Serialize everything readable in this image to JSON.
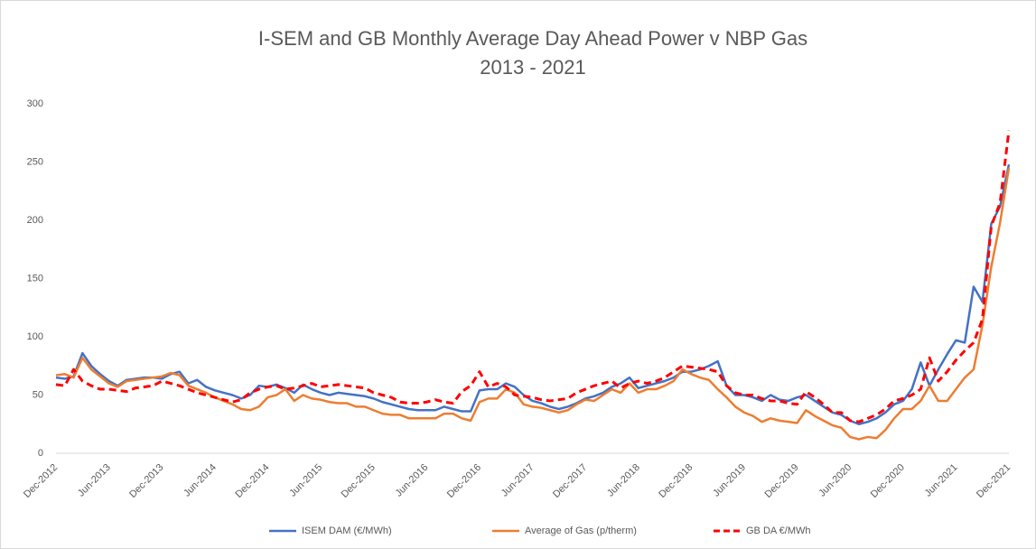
{
  "chart_data": {
    "type": "line",
    "title": "I-SEM and GB Monthly Average Day Ahead Power v NBP Gas",
    "subtitle": "2013 - 2021",
    "categories": [
      "Dec-2012",
      null,
      null,
      null,
      null,
      null,
      "Jun-2013",
      null,
      null,
      null,
      null,
      null,
      "Dec-2013",
      null,
      null,
      null,
      null,
      null,
      "Jun-2014",
      null,
      null,
      null,
      null,
      null,
      "Dec-2014",
      null,
      null,
      null,
      null,
      null,
      "Jun-2015",
      null,
      null,
      null,
      null,
      null,
      "Dec-2015",
      null,
      null,
      null,
      null,
      null,
      "Jun-2016",
      null,
      null,
      null,
      null,
      null,
      "Dec-2016",
      null,
      null,
      null,
      null,
      null,
      "Jun-2017",
      null,
      null,
      null,
      null,
      null,
      "Dec-2017",
      null,
      null,
      null,
      null,
      null,
      "Jun-2018",
      null,
      null,
      null,
      null,
      null,
      "Dec-2018",
      null,
      null,
      null,
      null,
      null,
      "Jun-2019",
      null,
      null,
      null,
      null,
      null,
      "Dec-2019",
      null,
      null,
      null,
      null,
      null,
      "Jun-2020",
      null,
      null,
      null,
      null,
      null,
      "Dec-2020",
      null,
      null,
      null,
      null,
      null,
      "Jun-2021",
      null,
      null,
      null,
      null,
      null,
      "Dec-2021"
    ],
    "series": [
      {
        "name": "ISEM DAM (€/MWh)",
        "color": "#4472c4",
        "dashed": false,
        "values": [
          65,
          64,
          66,
          86,
          75,
          68,
          62,
          58,
          63,
          64,
          65,
          65,
          64,
          68,
          70,
          60,
          63,
          57,
          54,
          52,
          50,
          47,
          50,
          58,
          57,
          59,
          56,
          52,
          59,
          55,
          52,
          50,
          52,
          51,
          50,
          49,
          47,
          44,
          42,
          40,
          38,
          37,
          37,
          37,
          40,
          38,
          36,
          36,
          54,
          55,
          55,
          60,
          57,
          50,
          45,
          43,
          40,
          38,
          40,
          43,
          47,
          49,
          52,
          57,
          60,
          65,
          56,
          58,
          60,
          62,
          65,
          70,
          70,
          72,
          75,
          79,
          58,
          50,
          50,
          48,
          45,
          50,
          46,
          45,
          48,
          50,
          45,
          40,
          35,
          33,
          28,
          25,
          27,
          30,
          35,
          42,
          45,
          55,
          78,
          58,
          72,
          85,
          97,
          95,
          143,
          130,
          197,
          212,
          248
        ]
      },
      {
        "name": "Average of Gas (p/therm)",
        "color": "#ed7d31",
        "dashed": false,
        "values": [
          67,
          68,
          65,
          82,
          72,
          66,
          60,
          57,
          62,
          63,
          64,
          65,
          66,
          69,
          67,
          58,
          55,
          52,
          48,
          45,
          42,
          38,
          37,
          40,
          48,
          50,
          55,
          45,
          50,
          47,
          46,
          44,
          43,
          43,
          40,
          40,
          37,
          34,
          33,
          33,
          30,
          30,
          30,
          30,
          34,
          34,
          30,
          28,
          44,
          47,
          47,
          55,
          52,
          42,
          40,
          39,
          37,
          35,
          37,
          42,
          46,
          45,
          50,
          55,
          52,
          60,
          52,
          55,
          55,
          58,
          62,
          72,
          68,
          65,
          63,
          55,
          48,
          40,
          35,
          32,
          27,
          30,
          28,
          27,
          26,
          37,
          32,
          28,
          24,
          22,
          14,
          12,
          14,
          13,
          20,
          30,
          38,
          38,
          45,
          58,
          45,
          45,
          55,
          65,
          72,
          110,
          160,
          198,
          245
        ]
      },
      {
        "name": "GB DA €/MWh",
        "color": "#ff0000",
        "dashed": true,
        "values": [
          59,
          58,
          72,
          62,
          58,
          55,
          55,
          54,
          53,
          56,
          57,
          58,
          62,
          60,
          58,
          55,
          52,
          50,
          48,
          46,
          44,
          46,
          52,
          55,
          57,
          58,
          55,
          56,
          58,
          60,
          57,
          58,
          59,
          58,
          57,
          56,
          52,
          50,
          48,
          44,
          43,
          43,
          44,
          46,
          44,
          43,
          53,
          58,
          70,
          57,
          60,
          57,
          50,
          49,
          48,
          46,
          45,
          46,
          47,
          52,
          55,
          58,
          60,
          62,
          56,
          60,
          62,
          60,
          62,
          65,
          70,
          75,
          74,
          73,
          72,
          70,
          58,
          52,
          50,
          50,
          47,
          45,
          45,
          43,
          42,
          53,
          48,
          42,
          35,
          35,
          28,
          27,
          30,
          33,
          38,
          45,
          47,
          50,
          55,
          82,
          62,
          70,
          80,
          88,
          95,
          115,
          195,
          215,
          277
        ]
      }
    ],
    "ylim": [
      0,
      300
    ],
    "yticks": [
      0,
      50,
      100,
      150,
      200,
      250,
      300
    ],
    "grid": false,
    "legend": "bottom"
  }
}
